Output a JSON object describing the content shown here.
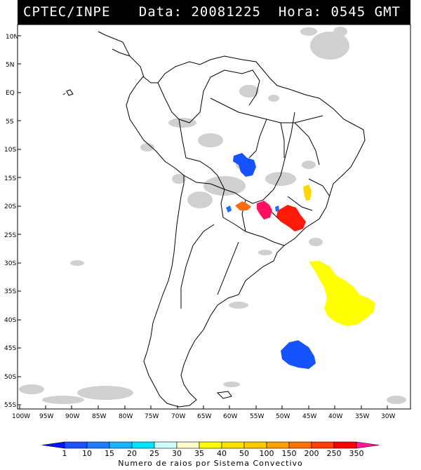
{
  "header": {
    "agency": "CPTEC/INPE",
    "datetime": "Data: 20081225  Hora: 0545 GMT"
  },
  "map": {
    "lat_labels": [
      "10N",
      "5N",
      "EQ",
      "5S",
      "10S",
      "15S",
      "20S",
      "25S",
      "30S",
      "35S",
      "40S",
      "45S",
      "50S",
      "55S"
    ],
    "lon_labels": [
      "100W",
      "95W",
      "90W",
      "85W",
      "80W",
      "75W",
      "70W",
      "65W",
      "60W",
      "55W",
      "50W",
      "45W",
      "40W",
      "35W",
      "30W"
    ],
    "land_color": "#ffffff",
    "cloud_color": "#c8c8c8",
    "border_color": "#000000"
  },
  "storm_systems": [
    {
      "label": "10",
      "color": "#1453ff",
      "lon": -57.5,
      "lat": -13.5
    },
    {
      "label": "15",
      "color": "#1e6cff",
      "lon": -60.0,
      "lat": -20.5
    },
    {
      "label": "250",
      "color": "#ff6a0a",
      "lon": -58.0,
      "lat": -20.0
    },
    {
      "label": "350",
      "color": "#ff1060",
      "lon": -53.5,
      "lat": -20.2
    },
    {
      "label": "300",
      "color": "#ff1a0a",
      "lon": -48.5,
      "lat": -22.0
    },
    {
      "label": "40",
      "color": "#ffd800",
      "lon": -44.5,
      "lat": -18.5
    },
    {
      "label": "35",
      "color": "#ffff00",
      "lon": -38.0,
      "lat": -37.5
    },
    {
      "label": "10",
      "color": "#1453ff",
      "lon": -45.0,
      "lat": -47.5
    }
  ],
  "colorbar": {
    "title": "Numero de raios por Sistema Convectivo",
    "labels": [
      "1",
      "10",
      "15",
      "20",
      "25",
      "30",
      "35",
      "40",
      "50",
      "100",
      "150",
      "200",
      "250",
      "350"
    ],
    "colors": [
      "#0a14ff",
      "#1a52ff",
      "#1e7cff",
      "#18b4ff",
      "#00e4ff",
      "#cfffff",
      "#ffffd0",
      "#ffff00",
      "#ffe000",
      "#ffc800",
      "#ffa000",
      "#ff7200",
      "#ff4000",
      "#ff0000",
      "#ff1a9a"
    ]
  }
}
